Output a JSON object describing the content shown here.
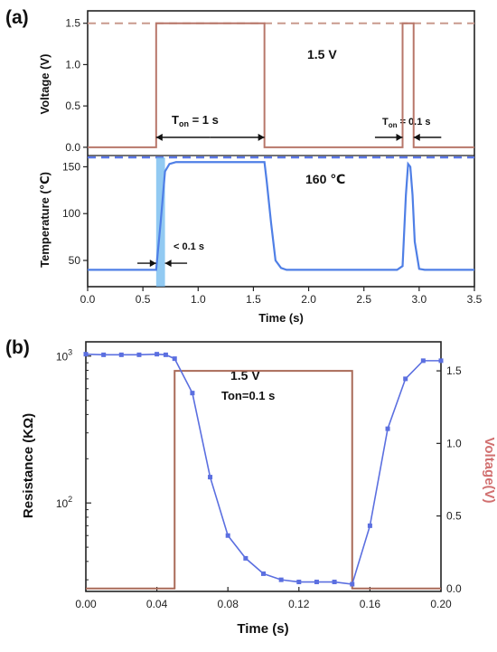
{
  "colors": {
    "voltage": "#b8776a",
    "voltage_ref": "#c99a8e",
    "temperature": "#4f7fe6",
    "temperature_ref": "#5b78e8",
    "resistance": "#5b6fe0",
    "voltage_b": "#a96a58",
    "voltage_axis": "#d17070",
    "highlight": "#6db8ee"
  },
  "chart_data": [
    {
      "panel": "(a)",
      "type": "line",
      "xlabel": "Time (s)",
      "xlim": [
        0,
        3.5
      ],
      "xticks": [
        "0.0",
        "0.5",
        "1.0",
        "1.5",
        "2.0",
        "2.5",
        "3.0",
        "3.5"
      ],
      "top": {
        "ylabel": "Voltage (V)",
        "ylim": [
          -0.1,
          1.65
        ],
        "yticks": [
          "0.0",
          "0.5",
          "1.0",
          "1.5"
        ],
        "reference": 1.5,
        "series": [
          {
            "x": [
              0,
              0.62,
              0.62,
              1.6,
              1.6,
              2.85,
              2.85,
              2.95,
              2.95,
              3.5
            ],
            "y": [
              0,
              0,
              1.5,
              1.5,
              0,
              0,
              1.5,
              1.5,
              0,
              0
            ]
          }
        ],
        "annotations": {
          "voltage": "1.5 V",
          "ton_long_main": "T",
          "ton_long_sub": "on",
          "ton_long_rest": " = 1 s",
          "ton_short_main": "T",
          "ton_short_sub": "on",
          "ton_short_rest": " = 0.1 s"
        }
      },
      "bottom": {
        "ylabel": "Temperature (℃)",
        "ylim": [
          22,
          162
        ],
        "yticks": [
          "50",
          "100",
          "150"
        ],
        "reference": 160,
        "series": [
          {
            "x": [
              0,
              0.62,
              0.66,
              0.7,
              0.74,
              0.8,
              0.9,
              1.2,
              1.55,
              1.6,
              1.62,
              1.66,
              1.7,
              1.75,
              1.8,
              2.0,
              2.5,
              2.8,
              2.85,
              2.88,
              2.9,
              2.92,
              2.94,
              2.96,
              3.0,
              3.05,
              3.5
            ],
            "y": [
              40,
              40,
              90,
              145,
              153,
              155,
              155,
              155,
              155,
              155,
              135,
              90,
              50,
              42,
              40,
              40,
              40,
              40,
              44,
              120,
              153,
              150,
              120,
              70,
              41,
              40,
              40
            ]
          }
        ],
        "highlight_x": [
          0.62,
          0.7
        ],
        "annotations": {
          "temperature": "160 ℃",
          "rise_time": "< 0.1 s"
        }
      }
    },
    {
      "panel": "(b)",
      "type": "line",
      "xlabel": "Time (s)",
      "xlim": [
        0,
        0.2
      ],
      "xticks": [
        "0.00",
        "0.04",
        "0.08",
        "0.12",
        "0.16",
        "0.20"
      ],
      "ylabel_left": "Resistance (KΩ)",
      "ylabel_right": "Voltage(V)",
      "yscale_left": "log",
      "ylim_left": [
        25,
        1250
      ],
      "yticks_left": [
        {
          "base": "10",
          "exp": "3",
          "value": 1000
        },
        {
          "base": "10",
          "exp": "2",
          "value": 100
        }
      ],
      "ylim_right": [
        -0.02,
        1.7
      ],
      "yticks_right": [
        "0.0",
        "0.5",
        "1.0",
        "1.5"
      ],
      "series": [
        {
          "axis": "left",
          "x": [
            0,
            0.01,
            0.02,
            0.03,
            0.04,
            0.045,
            0.05,
            0.06,
            0.07,
            0.08,
            0.09,
            0.1,
            0.11,
            0.12,
            0.13,
            0.14,
            0.15,
            0.16,
            0.17,
            0.18,
            0.19,
            0.2
          ],
          "y": [
            1030,
            1020,
            1020,
            1020,
            1030,
            1020,
            960,
            560,
            150,
            60,
            42,
            33,
            30,
            29,
            29,
            29,
            28,
            70,
            320,
            700,
            930,
            930
          ]
        },
        {
          "axis": "right",
          "x": [
            0,
            0.05,
            0.05,
            0.15,
            0.15,
            0.2
          ],
          "y": [
            0,
            0,
            1.5,
            1.5,
            0,
            0
          ]
        }
      ],
      "annotations": {
        "voltage": "1.5 V",
        "ton": "Ton=0.1 s"
      }
    }
  ]
}
